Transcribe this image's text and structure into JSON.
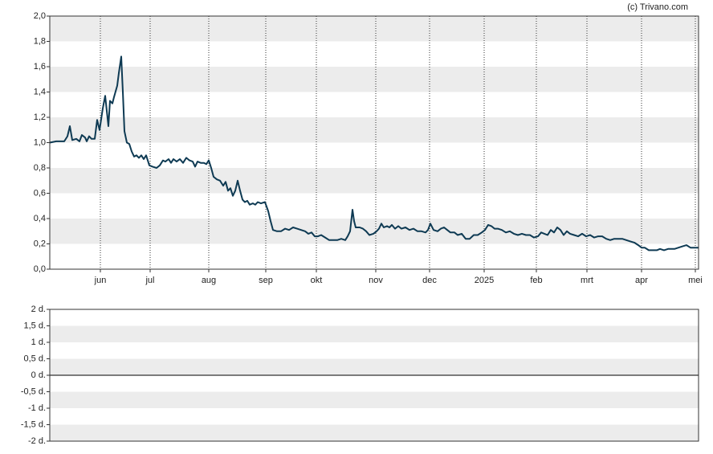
{
  "source": "(c) Trivano.com",
  "chart_data": [
    {
      "type": "line",
      "grid": true,
      "xlim": [
        0,
        808
      ],
      "ylim": [
        0,
        2
      ],
      "xticks": [
        {
          "value": 63,
          "label": "jun"
        },
        {
          "value": 125,
          "label": "jul"
        },
        {
          "value": 198,
          "label": "aug"
        },
        {
          "value": 269,
          "label": "sep"
        },
        {
          "value": 332,
          "label": "okt"
        },
        {
          "value": 406,
          "label": "nov"
        },
        {
          "value": 473,
          "label": "dec"
        },
        {
          "value": 541,
          "label": "2025"
        },
        {
          "value": 606,
          "label": "feb"
        },
        {
          "value": 669,
          "label": "mrt"
        },
        {
          "value": 737,
          "label": "apr"
        },
        {
          "value": 804,
          "label": "mei"
        }
      ],
      "yticks": [
        {
          "value": 0,
          "label": "0,0"
        },
        {
          "value": 0.2,
          "label": "0,2"
        },
        {
          "value": 0.4,
          "label": "0,4"
        },
        {
          "value": 0.6,
          "label": "0,6"
        },
        {
          "value": 0.8,
          "label": "0,8"
        },
        {
          "value": 1,
          "label": "1,0"
        },
        {
          "value": 1.2,
          "label": "1,2"
        },
        {
          "value": 1.4,
          "label": "1,4"
        },
        {
          "value": 1.6,
          "label": "1,6"
        },
        {
          "value": 1.8,
          "label": "1,8"
        },
        {
          "value": 2,
          "label": "2,0"
        }
      ],
      "series": [
        {
          "color": "#0e3a53",
          "x": [
            0,
            8,
            18,
            22,
            25,
            28,
            33,
            37,
            40,
            44,
            46,
            49,
            52,
            56,
            59,
            62,
            66,
            69,
            71,
            73,
            75,
            78,
            80,
            84,
            86,
            89,
            91,
            93,
            96,
            99,
            102,
            105,
            108,
            111,
            114,
            117,
            120,
            124,
            128,
            133,
            137,
            141,
            144,
            148,
            151,
            154,
            158,
            162,
            166,
            170,
            174,
            178,
            181,
            184,
            188,
            192,
            195,
            198,
            201,
            204,
            208,
            212,
            216,
            219,
            222,
            225,
            228,
            231,
            234,
            237,
            240,
            243,
            246,
            249,
            253,
            256,
            259,
            263,
            268,
            272,
            275,
            278,
            283,
            288,
            293,
            298,
            303,
            308,
            313,
            318,
            322,
            326,
            330,
            334,
            338,
            343,
            348,
            353,
            358,
            363,
            368,
            371,
            374,
            377,
            379,
            381,
            386,
            390,
            394,
            398,
            403,
            407,
            410,
            413,
            416,
            420,
            423,
            426,
            430,
            434,
            438,
            443,
            448,
            453,
            458,
            463,
            468,
            471,
            474,
            478,
            483,
            487,
            491,
            495,
            499,
            504,
            508,
            513,
            518,
            523,
            528,
            533,
            538,
            542,
            546,
            550,
            554,
            558,
            563,
            568,
            573,
            578,
            583,
            588,
            593,
            598,
            603,
            608,
            612,
            616,
            620,
            624,
            628,
            632,
            636,
            640,
            644,
            648,
            653,
            658,
            663,
            668,
            673,
            678,
            683,
            688,
            693,
            698,
            703,
            708,
            713,
            718,
            723,
            728,
            733,
            737,
            741,
            746,
            751,
            756,
            760,
            765,
            770,
            774,
            778,
            783,
            788,
            793,
            798,
            803,
            808
          ],
          "values": [
            1.0,
            1.01,
            1.01,
            1.05,
            1.13,
            1.02,
            1.03,
            1.01,
            1.06,
            1.04,
            1.01,
            1.05,
            1.03,
            1.03,
            1.18,
            1.1,
            1.27,
            1.37,
            1.25,
            1.13,
            1.33,
            1.31,
            1.36,
            1.45,
            1.55,
            1.68,
            1.4,
            1.09,
            1.0,
            0.99,
            0.93,
            0.89,
            0.9,
            0.88,
            0.9,
            0.87,
            0.9,
            0.82,
            0.81,
            0.8,
            0.82,
            0.86,
            0.85,
            0.87,
            0.84,
            0.87,
            0.85,
            0.87,
            0.84,
            0.88,
            0.86,
            0.85,
            0.81,
            0.85,
            0.84,
            0.84,
            0.83,
            0.86,
            0.8,
            0.73,
            0.71,
            0.7,
            0.66,
            0.69,
            0.62,
            0.64,
            0.58,
            0.62,
            0.7,
            0.62,
            0.55,
            0.53,
            0.54,
            0.51,
            0.52,
            0.51,
            0.53,
            0.52,
            0.53,
            0.46,
            0.38,
            0.31,
            0.3,
            0.3,
            0.32,
            0.31,
            0.33,
            0.32,
            0.31,
            0.3,
            0.28,
            0.29,
            0.26,
            0.26,
            0.27,
            0.25,
            0.23,
            0.23,
            0.23,
            0.24,
            0.23,
            0.26,
            0.3,
            0.47,
            0.38,
            0.33,
            0.33,
            0.32,
            0.3,
            0.27,
            0.28,
            0.3,
            0.32,
            0.36,
            0.33,
            0.34,
            0.33,
            0.35,
            0.32,
            0.34,
            0.32,
            0.33,
            0.31,
            0.32,
            0.3,
            0.3,
            0.29,
            0.31,
            0.36,
            0.31,
            0.3,
            0.32,
            0.33,
            0.31,
            0.29,
            0.29,
            0.27,
            0.28,
            0.24,
            0.24,
            0.27,
            0.27,
            0.29,
            0.31,
            0.35,
            0.34,
            0.32,
            0.32,
            0.31,
            0.29,
            0.3,
            0.28,
            0.27,
            0.28,
            0.27,
            0.27,
            0.25,
            0.26,
            0.29,
            0.28,
            0.27,
            0.31,
            0.29,
            0.33,
            0.31,
            0.27,
            0.3,
            0.28,
            0.27,
            0.26,
            0.28,
            0.26,
            0.27,
            0.25,
            0.26,
            0.26,
            0.24,
            0.23,
            0.24,
            0.24,
            0.24,
            0.23,
            0.22,
            0.21,
            0.19,
            0.17,
            0.17,
            0.15,
            0.15,
            0.15,
            0.16,
            0.15,
            0.16,
            0.16,
            0.16,
            0.17,
            0.18,
            0.19,
            0.17,
            0.17,
            0.17
          ]
        }
      ]
    },
    {
      "type": "line",
      "grid": true,
      "ylim": [
        -2,
        2
      ],
      "yticks": [
        {
          "value": 2,
          "label": "2 d."
        },
        {
          "value": 1.5,
          "label": "1,5 d."
        },
        {
          "value": 1,
          "label": "1 d."
        },
        {
          "value": 0.5,
          "label": "0,5 d."
        },
        {
          "value": 0,
          "label": "0 d."
        },
        {
          "value": -0.5,
          "label": "-0,5 d."
        },
        {
          "value": -1,
          "label": "-1 d."
        },
        {
          "value": -1.5,
          "label": "-1,5 d."
        },
        {
          "value": -2,
          "label": "-2 d."
        }
      ],
      "series": []
    }
  ]
}
